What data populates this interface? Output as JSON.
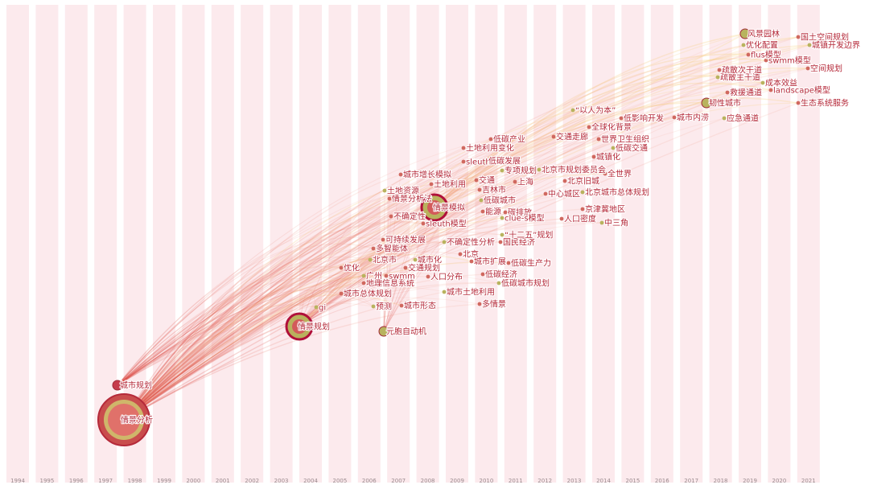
{
  "timeline": {
    "years": [
      "1994",
      "1995",
      "1996",
      "1997",
      "1998",
      "1999",
      "2000",
      "2001",
      "2002",
      "2003",
      "2004",
      "2005",
      "2006",
      "2007",
      "2008",
      "2009",
      "2010",
      "2011",
      "2012",
      "2013",
      "2014",
      "2015",
      "2016",
      "2017",
      "2018",
      "2019",
      "2020",
      "2021"
    ]
  },
  "colors": {
    "band": "#fbe6ea",
    "link_red": "#e8907a",
    "link_yellow": "#f4c97a",
    "node_red": "#c63c4c",
    "node_olive": "#b8b35e",
    "label": "#b52a3a"
  },
  "keywords": [
    {
      "label": "情景分析",
      "year": 1998,
      "size": "xl"
    },
    {
      "label": "城市规划",
      "year": 1997,
      "size": "m"
    },
    {
      "label": "情景规划",
      "year": 2004,
      "size": "l"
    },
    {
      "label": "gi",
      "year": 2004,
      "size": "s"
    },
    {
      "label": "元胞自动机",
      "year": 2007,
      "size": "m"
    },
    {
      "label": "城市形态",
      "year": 2007,
      "size": "s"
    },
    {
      "label": "预测",
      "year": 2006,
      "size": "s"
    },
    {
      "label": "城市总体规划",
      "year": 2005,
      "size": "s"
    },
    {
      "label": "地理信息系统",
      "year": 2006,
      "size": "s"
    },
    {
      "label": "广州",
      "year": 2006,
      "size": "s"
    },
    {
      "label": "swmm",
      "year": 2007,
      "size": "s"
    },
    {
      "label": "优化",
      "year": 2005,
      "size": "s"
    },
    {
      "label": "北京市",
      "year": 2006,
      "size": "s"
    },
    {
      "label": "多智能体",
      "year": 2006,
      "size": "s"
    },
    {
      "label": "可持续发展",
      "year": 2007,
      "size": "s"
    },
    {
      "label": "城市化",
      "year": 2008,
      "size": "s"
    },
    {
      "label": "交通规划",
      "year": 2008,
      "size": "s"
    },
    {
      "label": "人口分布",
      "year": 2008,
      "size": "s"
    },
    {
      "label": "不确定性分析",
      "year": 2009,
      "size": "s"
    },
    {
      "label": "北京",
      "year": 2009,
      "size": "s"
    },
    {
      "label": "城市扩展",
      "year": 2009,
      "size": "s"
    },
    {
      "label": "城市土地利用",
      "year": 2009,
      "size": "s"
    },
    {
      "label": "多情景",
      "year": 2010,
      "size": "s"
    },
    {
      "label": "低碳经济",
      "year": 2010,
      "size": "s"
    },
    {
      "label": "低碳城市规划",
      "year": 2011,
      "size": "s"
    },
    {
      "label": "低碳生产力",
      "year": 2011,
      "size": "s"
    },
    {
      "label": "国民经济",
      "year": 2011,
      "size": "s"
    },
    {
      "label": "“十二五”规划",
      "year": 2011,
      "size": "s"
    },
    {
      "label": "不确定性",
      "year": 2007,
      "size": "s"
    },
    {
      "label": "情景分析法",
      "year": 2007,
      "size": "s"
    },
    {
      "label": "土地资源",
      "year": 2007,
      "size": "s"
    },
    {
      "label": "城市增长模拟",
      "year": 2008,
      "size": "s"
    },
    {
      "label": "土地利用",
      "year": 2008,
      "size": "s"
    },
    {
      "label": "情景模拟",
      "year": 2008,
      "size": "l"
    },
    {
      "label": "sleuth模型",
      "year": 2008,
      "size": "s"
    },
    {
      "label": "sleuth",
      "year": 2009,
      "size": "s"
    },
    {
      "label": "低碳发展",
      "year": 2009,
      "size": "s"
    },
    {
      "label": "土地利用变化",
      "year": 2009,
      "size": "s"
    },
    {
      "label": "低碳产业",
      "year": 2010,
      "size": "s"
    },
    {
      "label": "专项规划",
      "year": 2010,
      "size": "s"
    },
    {
      "label": "交通",
      "year": 2010,
      "size": "s"
    },
    {
      "label": "吉林市",
      "year": 2010,
      "size": "s"
    },
    {
      "label": "低碳城市",
      "year": 2010,
      "size": "s"
    },
    {
      "label": "能源",
      "year": 2010,
      "size": "s"
    },
    {
      "label": "碳排放",
      "year": 2011,
      "size": "s"
    },
    {
      "label": "clue-s模型",
      "year": 2010,
      "size": "s"
    },
    {
      "label": "上海",
      "year": 2011,
      "size": "s"
    },
    {
      "label": "交通走廊",
      "year": 2012,
      "size": "s"
    },
    {
      "label": "北京市规划委员会",
      "year": 2012,
      "size": "s"
    },
    {
      "label": "北京旧城",
      "year": 2012,
      "size": "s"
    },
    {
      "label": "中心城区",
      "year": 2012,
      "size": "s"
    },
    {
      "label": "北京城市总体规划",
      "year": 2013,
      "size": "s"
    },
    {
      "label": "人口密度",
      "year": 2013,
      "size": "s"
    },
    {
      "label": "京津冀地区",
      "year": 2013,
      "size": "s"
    },
    {
      "label": "中三角",
      "year": 2014,
      "size": "s"
    },
    {
      "label": "全世界",
      "year": 2014,
      "size": "s"
    },
    {
      "label": "城镇化",
      "year": 2014,
      "size": "s"
    },
    {
      "label": "低碳交通",
      "year": 2014,
      "size": "s"
    },
    {
      "label": "世界卫生组织",
      "year": 2014,
      "size": "s"
    },
    {
      "label": "全球化背景",
      "year": 2014,
      "size": "s"
    },
    {
      "label": "“以人为本”",
      "year": 2013,
      "size": "s"
    },
    {
      "label": "低影响开发",
      "year": 2015,
      "size": "s"
    },
    {
      "label": "城市内涝",
      "year": 2016,
      "size": "s"
    },
    {
      "label": "应急通道",
      "year": 2017,
      "size": "s"
    },
    {
      "label": "韧性城市",
      "year": 2017,
      "size": "m"
    },
    {
      "label": "救援通道",
      "year": 2018,
      "size": "s"
    },
    {
      "label": "疏散主干道",
      "year": 2018,
      "size": "s"
    },
    {
      "label": "疏散次干道",
      "year": 2018,
      "size": "s"
    },
    {
      "label": "flus模型",
      "year": 2019,
      "size": "s"
    },
    {
      "label": "优化配置",
      "year": 2019,
      "size": "s"
    },
    {
      "label": "风景园林",
      "year": 2019,
      "size": "m"
    },
    {
      "label": "swmm模型",
      "year": 2020,
      "size": "s"
    },
    {
      "label": "成本效益",
      "year": 2020,
      "size": "s"
    },
    {
      "label": "landscape模型",
      "year": 2020,
      "size": "s"
    },
    {
      "label": "国土空间规划",
      "year": 2021,
      "size": "s"
    },
    {
      "label": "城镇开发边界",
      "year": 2021,
      "size": "s"
    },
    {
      "label": "空间规划",
      "year": 2021,
      "size": "s"
    },
    {
      "label": "生态系统服务",
      "year": 2021,
      "size": "s"
    }
  ]
}
